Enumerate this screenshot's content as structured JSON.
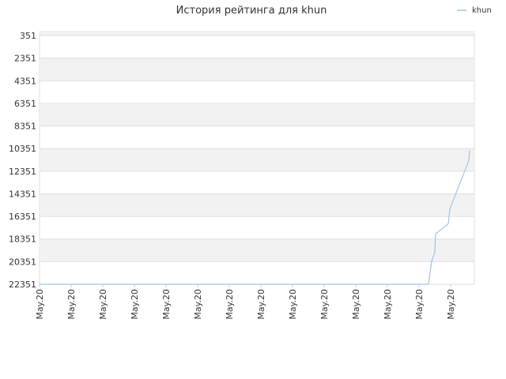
{
  "chart_data": {
    "type": "line",
    "title": "История рейтинга для khun",
    "x": [
      0,
      123,
      124,
      125,
      125.25,
      129.25,
      129.75,
      135.75,
      136
    ],
    "xlim": [
      0,
      137.5
    ],
    "xticks": [
      {
        "value": 0,
        "label": "May.20"
      },
      {
        "value": 10,
        "label": "May.20"
      },
      {
        "value": 20,
        "label": "May.20"
      },
      {
        "value": 30,
        "label": "May.20"
      },
      {
        "value": 40,
        "label": "May.20"
      },
      {
        "value": 50,
        "label": "May.20"
      },
      {
        "value": 60,
        "label": "May.20"
      },
      {
        "value": 70,
        "label": "May.20"
      },
      {
        "value": 80,
        "label": "May.20"
      },
      {
        "value": 90,
        "label": "May.20"
      },
      {
        "value": 100,
        "label": "May.20"
      },
      {
        "value": 110,
        "label": "May.20"
      },
      {
        "value": 120,
        "label": "May.20"
      },
      {
        "value": 130,
        "label": "May.20"
      }
    ],
    "ylim": [
      0,
      22351
    ],
    "y_inverted": true,
    "yticks": [
      351,
      2351,
      4351,
      6351,
      8351,
      10351,
      12351,
      14351,
      16351,
      18351,
      20351,
      22351
    ],
    "grid": true,
    "legend": "top-right",
    "series": [
      {
        "name": "khun",
        "color": "#9fc5ec",
        "values": [
          22351,
          22351,
          20300,
          19500,
          17900,
          17000,
          15700,
          11400,
          10500
        ]
      }
    ]
  }
}
